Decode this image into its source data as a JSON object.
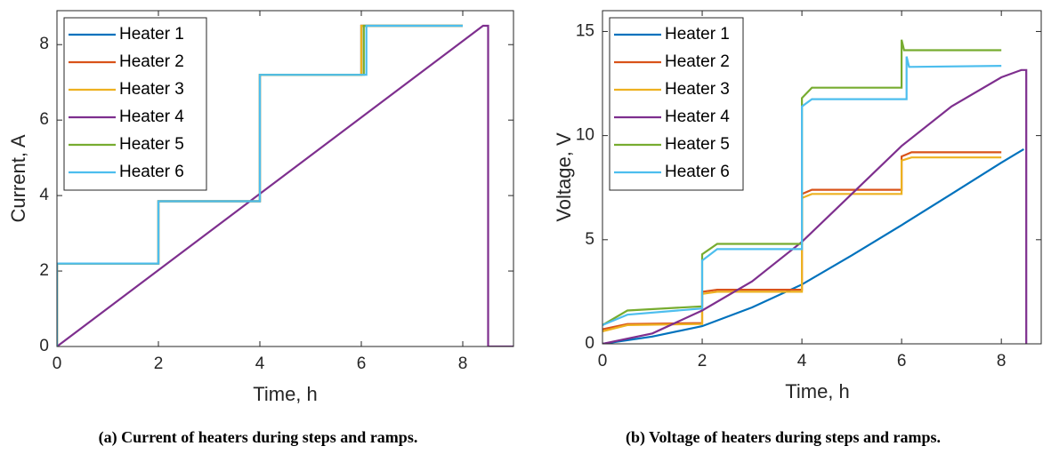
{
  "chart_data": [
    {
      "type": "line",
      "caption": "(a) Current of heaters during steps and ramps.",
      "x_label": "Time, h",
      "y_label": "Current, A",
      "xlim": [
        0,
        9
      ],
      "ylim": [
        0,
        8.9
      ],
      "xticks": [
        0,
        2,
        4,
        6,
        8
      ],
      "yticks": [
        0,
        2,
        4,
        6,
        8
      ],
      "legend": "upper-left",
      "series": [
        {
          "name": "Heater 1",
          "color": "#0072BD",
          "x": [
            0,
            0,
            2,
            2,
            4,
            4,
            6,
            6,
            8
          ],
          "values": [
            0,
            2.2,
            2.2,
            3.85,
            3.85,
            7.2,
            7.2,
            8.5,
            8.5
          ]
        },
        {
          "name": "Heater 2",
          "color": "#D95319",
          "x": [
            0,
            0,
            2,
            2,
            4,
            4,
            6,
            6,
            8
          ],
          "values": [
            0,
            2.2,
            2.2,
            3.85,
            3.85,
            7.2,
            7.2,
            8.5,
            8.5
          ]
        },
        {
          "name": "Heater 3",
          "color": "#EDB120",
          "x": [
            0,
            0,
            2,
            2,
            4,
            4,
            6,
            6,
            8
          ],
          "values": [
            0,
            2.2,
            2.2,
            3.85,
            3.85,
            7.2,
            7.2,
            8.5,
            8.5
          ]
        },
        {
          "name": "Heater 4",
          "color": "#7E2F8E",
          "x": [
            0,
            8.4,
            8.5,
            8.5,
            9
          ],
          "values": [
            0,
            8.5,
            8.5,
            0,
            0
          ]
        },
        {
          "name": "Heater 5",
          "color": "#77AC30",
          "x": [
            0,
            0,
            2,
            2,
            4,
            4,
            6.05,
            6.05,
            8
          ],
          "values": [
            0,
            2.2,
            2.2,
            3.85,
            3.85,
            7.2,
            7.2,
            8.5,
            8.5
          ]
        },
        {
          "name": "Heater 6",
          "color": "#4DBEEE",
          "x": [
            0,
            0,
            2,
            2,
            4,
            4,
            6.1,
            6.1,
            8
          ],
          "values": [
            0,
            2.2,
            2.2,
            3.85,
            3.85,
            7.2,
            7.2,
            8.5,
            8.5
          ]
        }
      ]
    },
    {
      "type": "line",
      "caption": "(b) Voltage of heaters during steps and ramps.",
      "x_label": "Time, h",
      "y_label": "Voltage, V",
      "xlim": [
        0,
        8.8
      ],
      "ylim": [
        0,
        16
      ],
      "xticks": [
        0,
        2,
        4,
        6,
        8
      ],
      "yticks": [
        0,
        5,
        10,
        15
      ],
      "legend": "upper-left",
      "series": [
        {
          "name": "Heater 1",
          "color": "#0072BD",
          "x": [
            0,
            1,
            2,
            3,
            4,
            5,
            6,
            7,
            8,
            8.45
          ],
          "values": [
            0,
            0.35,
            0.85,
            1.75,
            2.85,
            4.25,
            5.7,
            7.2,
            8.7,
            9.35
          ]
        },
        {
          "name": "Heater 2",
          "color": "#D95319",
          "x": [
            0,
            0.5,
            2,
            2,
            2.3,
            4,
            4,
            4.2,
            6,
            6,
            6.2,
            8
          ],
          "values": [
            0.7,
            0.95,
            1.0,
            2.5,
            2.6,
            2.6,
            7.2,
            7.4,
            7.4,
            9.0,
            9.2,
            9.2
          ]
        },
        {
          "name": "Heater 3",
          "color": "#EDB120",
          "x": [
            0,
            0.5,
            2,
            2,
            2.3,
            4,
            4,
            4.2,
            6,
            6,
            6.2,
            8
          ],
          "values": [
            0.6,
            0.9,
            0.95,
            2.4,
            2.5,
            2.5,
            7.0,
            7.2,
            7.2,
            8.8,
            8.95,
            8.95
          ]
        },
        {
          "name": "Heater 4",
          "color": "#7E2F8E",
          "x": [
            0,
            1,
            2,
            3,
            4,
            5,
            6,
            7,
            8,
            8.4,
            8.5,
            8.5
          ],
          "values": [
            0,
            0.5,
            1.6,
            3.0,
            4.9,
            7.2,
            9.5,
            11.4,
            12.8,
            13.15,
            13.15,
            0
          ]
        },
        {
          "name": "Heater 5",
          "color": "#77AC30",
          "x": [
            0,
            0.5,
            2,
            2,
            2.3,
            4,
            4,
            4.2,
            6,
            6,
            6.05,
            8
          ],
          "values": [
            0.9,
            1.6,
            1.8,
            4.3,
            4.8,
            4.8,
            11.8,
            12.3,
            12.3,
            14.6,
            14.1,
            14.1
          ]
        },
        {
          "name": "Heater 6",
          "color": "#4DBEEE",
          "x": [
            0,
            0.5,
            2,
            2,
            2.3,
            4,
            4,
            4.2,
            6.1,
            6.1,
            6.15,
            8
          ],
          "values": [
            0.9,
            1.4,
            1.7,
            4.0,
            4.55,
            4.55,
            11.4,
            11.75,
            11.75,
            13.8,
            13.3,
            13.35
          ]
        }
      ]
    }
  ]
}
